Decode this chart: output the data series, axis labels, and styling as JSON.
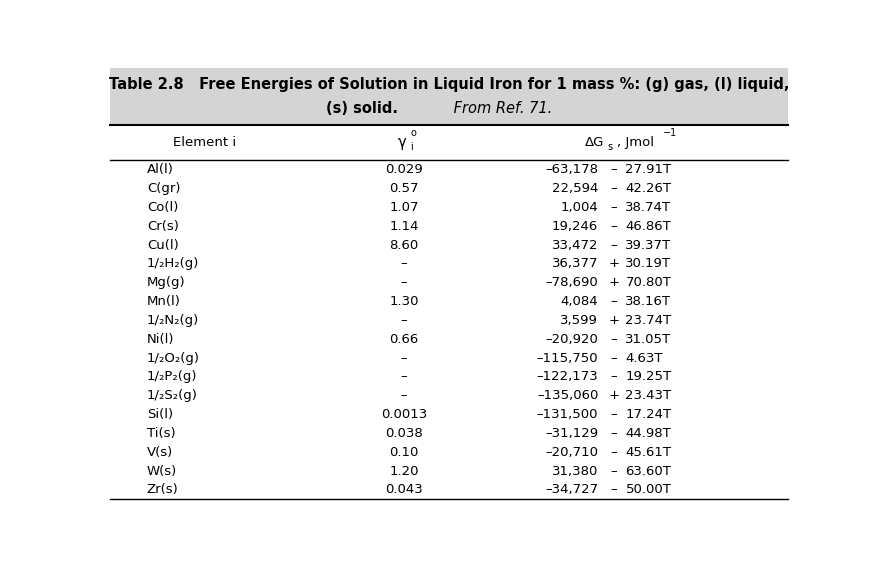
{
  "title_bold": "Table 2.8   Free Energies of Solution in Liquid Iron for 1 mass %: (g) gas, (l) liquid,",
  "title_line2_bold": "(s) solid.",
  "title_line2_italic": " From Ref. 71.",
  "rows": [
    [
      "Al(l)",
      "0.029",
      "–63,178",
      "–",
      "27.91T"
    ],
    [
      "C(gr)",
      "0.57",
      "22,594",
      "–",
      "42.26T"
    ],
    [
      "Co(l)",
      "1.07",
      "1,004",
      "–",
      "38.74T"
    ],
    [
      "Cr(s)",
      "1.14",
      "19,246",
      "–",
      "46.86T"
    ],
    [
      "Cu(l)",
      "8.60",
      "33,472",
      "–",
      "39.37T"
    ],
    [
      "1/₂H₂(g)",
      "–",
      "36,377",
      "+",
      "30.19T"
    ],
    [
      "Mg(g)",
      "–",
      "–78,690",
      "+",
      "70.80T"
    ],
    [
      "Mn(l)",
      "1.30",
      "4,084",
      "–",
      "38.16T"
    ],
    [
      "1/₂N₂(g)",
      "–",
      "3,599",
      "+",
      "23.74T"
    ],
    [
      "Ni(l)",
      "0.66",
      "–20,920",
      "–",
      "31.05T"
    ],
    [
      "1/₂O₂(g)",
      "–",
      "–115,750",
      "–",
      "4.63T"
    ],
    [
      "1/₂P₂(g)",
      "–",
      "–122,173",
      "–",
      "19.25T"
    ],
    [
      "1/₂S₂(g)",
      "–",
      "–135,060",
      "+",
      "23.43T"
    ],
    [
      "Si(l)",
      "0.0013",
      "–131,500",
      "–",
      "17.24T"
    ],
    [
      "Ti(s)",
      "0.038",
      "–31,129",
      "–",
      "44.98T"
    ],
    [
      "V(s)",
      "0.10",
      "–20,710",
      "–",
      "45.61T"
    ],
    [
      "W(s)",
      "1.20",
      "31,380",
      "–",
      "63.60T"
    ],
    [
      "Zr(s)",
      "0.043",
      "–34,727",
      "–",
      "50.00T"
    ]
  ],
  "bg_color": "#ffffff",
  "title_bg": "#d4d4d4",
  "font_size": 9.5,
  "title_font_size": 10.5
}
